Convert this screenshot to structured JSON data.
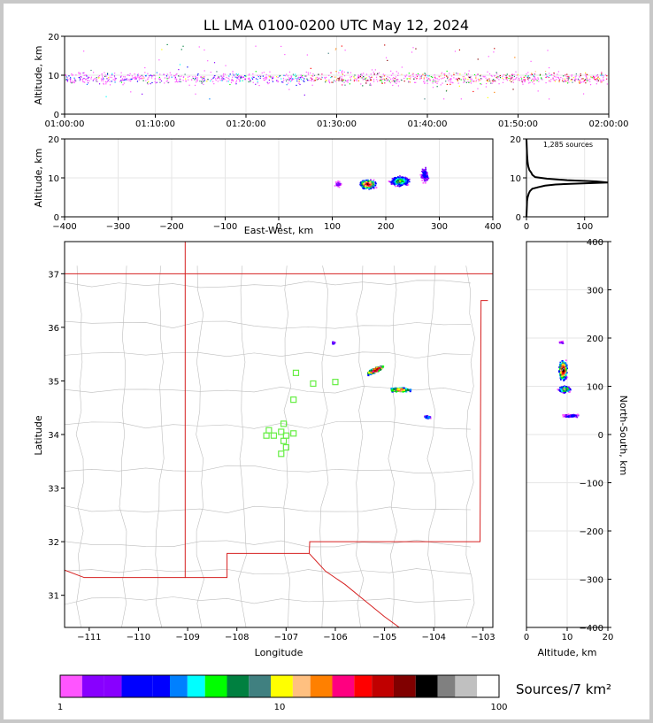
{
  "title": "LL LMA 0100-0200 UTC May 12, 2024",
  "sources_label": "1,285 sources",
  "colorbar_label": "Sources/7 km²",
  "chart_data": [
    {
      "id": "time_altitude",
      "type": "scatter",
      "ylabel": "Altitude, km",
      "xlabel": "",
      "ylim": [
        0,
        20
      ],
      "xticks": [
        "01:00:00",
        "01:10:00",
        "01:20:00",
        "01:30:00",
        "01:40:00",
        "01:50:00",
        "02:00:00"
      ],
      "yticks": [
        0,
        10,
        20
      ],
      "grid": true,
      "note_series": "lightning VHF sources, altitude mostly 7-12 km throughout the hour"
    },
    {
      "id": "ew_altitude",
      "type": "scatter",
      "xlabel": "East-West, km",
      "ylabel": "Altitude, km",
      "xlim": [
        -400,
        400
      ],
      "ylim": [
        0,
        20
      ],
      "xticks": [
        -400,
        -300,
        -200,
        -100,
        0,
        100,
        200,
        300,
        400
      ],
      "yticks": [
        0,
        10,
        20
      ],
      "grid": true
    },
    {
      "id": "altitude_histogram",
      "type": "line",
      "xlim": [
        0,
        140
      ],
      "ylim": [
        0,
        20
      ],
      "xticks": [
        0,
        100
      ],
      "yticks": [
        0,
        10,
        20
      ],
      "x": [
        0,
        1,
        2,
        3,
        4,
        6,
        10,
        20,
        32,
        50,
        80,
        140,
        120,
        70,
        35,
        15,
        10,
        8,
        5,
        3,
        2,
        1,
        0
      ],
      "y": [
        0,
        4,
        5,
        5.5,
        6,
        6.6,
        7.2,
        7.6,
        8.0,
        8.3,
        8.5,
        8.8,
        9.1,
        9.4,
        9.8,
        10.2,
        10.8,
        11.4,
        12.0,
        13.0,
        14.0,
        16.0,
        20.0
      ]
    },
    {
      "id": "map",
      "type": "scatter",
      "xlabel": "Longitude",
      "ylabel": "Latitude",
      "xlim": [
        -111.5,
        -102.8
      ],
      "ylim": [
        30.4,
        37.6
      ],
      "xticks": [
        -111,
        -110,
        -109,
        -108,
        -107,
        -106,
        -105,
        -104,
        -103
      ],
      "yticks": [
        31,
        32,
        33,
        34,
        35,
        36,
        37
      ],
      "stations": [
        [
          -106.8,
          35.15
        ],
        [
          -106.45,
          34.95
        ],
        [
          -106.0,
          34.98
        ],
        [
          -106.85,
          34.65
        ],
        [
          -107.05,
          34.2
        ],
        [
          -107.35,
          34.08
        ],
        [
          -107.1,
          34.05
        ],
        [
          -107.4,
          33.98
        ],
        [
          -107.25,
          33.98
        ],
        [
          -107.0,
          33.98
        ],
        [
          -106.85,
          34.02
        ],
        [
          -107.05,
          33.88
        ],
        [
          -107.0,
          33.76
        ],
        [
          -107.1,
          33.64
        ]
      ]
    },
    {
      "id": "alt_ns",
      "type": "scatter",
      "xlabel": "Altitude, km",
      "ylabel": "North-South, km",
      "xlim": [
        0,
        20
      ],
      "ylim": [
        -400,
        400
      ],
      "xticks": [
        0,
        10,
        20
      ],
      "yticks": [
        -400,
        -300,
        -200,
        -100,
        0,
        100,
        200,
        300,
        400
      ],
      "grid": true
    }
  ],
  "colorbar": {
    "ticks": [
      "1",
      "10",
      "100"
    ],
    "colors": [
      "#ff55ff",
      "#8800ff",
      "#8800ff",
      "#0000ff",
      "#0000ff",
      "#0080ff",
      "#00ffff",
      "#00ff00",
      "#008040",
      "#408080",
      "#ffff00",
      "#ffc080",
      "#ff8000",
      "#ff0080",
      "#ff0000",
      "#c00000",
      "#800000",
      "#000000",
      "#808080",
      "#c0c0c0",
      "#ffffff"
    ]
  }
}
